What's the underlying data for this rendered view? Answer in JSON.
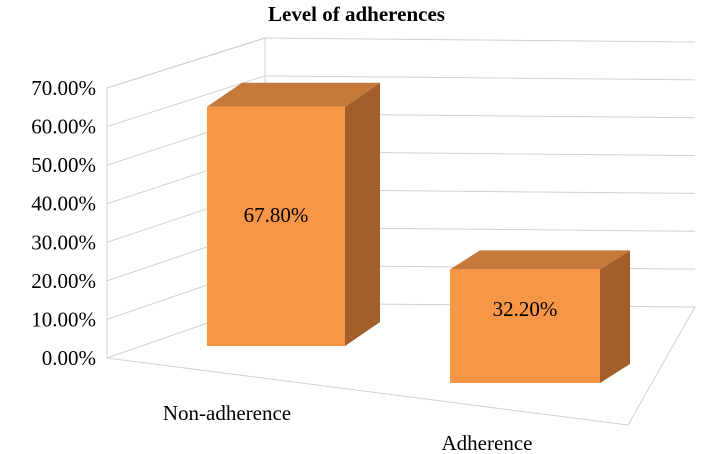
{
  "chart_data": {
    "type": "bar",
    "title": "Level of adherences",
    "categories": [
      "Non-adherence",
      "Adherence"
    ],
    "values": [
      67.8,
      32.2
    ],
    "data_labels": [
      "67.80%",
      "32.20%"
    ],
    "ylim": [
      0,
      70
    ],
    "y_ticks": [
      "0.00%",
      "10.00%",
      "20.00%",
      "30.00%",
      "40.00%",
      "50.00%",
      "60.00%",
      "70.00%"
    ],
    "grid": true,
    "legend": "none",
    "style": "3d-column",
    "colors": {
      "bar_front": "#F79646",
      "bar_top": "#C57A3C",
      "bar_side": "#A35E2B",
      "gridline": "#D0D0D0"
    }
  }
}
